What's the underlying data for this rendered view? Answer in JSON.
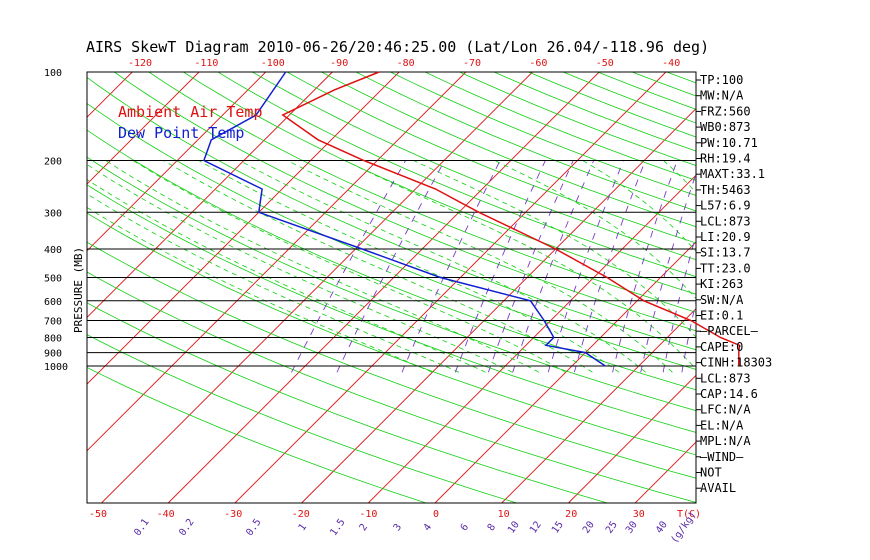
{
  "title": "AIRS SkewT Diagram 2010-06-26/20:46:25.00 (Lat/Lon 26.04/-118.96 deg)",
  "legend": {
    "ambient": "Ambient Air Temp",
    "dewpoint": "Dew Point Temp"
  },
  "colors": {
    "ambient": "#e01010",
    "dewpoint": "#1020d0",
    "isotherm": "#e01010",
    "dry_adiabat": "#10d010",
    "moist_adiabat": "#10d010",
    "mixing_ratio": "#7a3ac8",
    "frame": "#000000"
  },
  "side_panel": [
    "TP:100",
    "MW:N/A",
    "FRZ:560",
    "WB0:873",
    "PW:10.71",
    "RH:19.4",
    "MAXT:33.1",
    "TH:5463",
    "L57:6.9",
    "LCL:873",
    "LI:20.9",
    "SI:13.7",
    "TT:23.0",
    "KI:263",
    "SW:N/A",
    "EI:0.1",
    "—PARCEL—",
    "CAPE:0",
    "CINH:18303",
    "LCL:873",
    "CAP:14.6",
    "LFC:N/A",
    "EL:N/A",
    "MPL:N/A",
    "—WIND—",
    "NOT",
    "AVAIL"
  ],
  "top_ticks": [
    "-120",
    "-110",
    "-100",
    "-90",
    "-80",
    "-70",
    "-60",
    "-50",
    "-40"
  ],
  "bottom_ticks": [
    "-50",
    "-40",
    "-30",
    "-20",
    "-10",
    "0",
    "10",
    "20",
    "30",
    "T(C)"
  ],
  "mixing_ticks": [
    "0.1",
    "0.2",
    "0.5",
    "1",
    "1.5",
    "2",
    "3",
    "4",
    "6",
    "8",
    "10",
    "12",
    "15",
    "20",
    "25",
    "30",
    "40",
    "(g/kg)"
  ],
  "chart_data": {
    "type": "line",
    "title": "AIRS SkewT Diagram 2010-06-26/20:46:25.00 (Lat/Lon 26.04/-118.96 deg)",
    "ylabel": "PRESSURE (MB)",
    "xlabel": "T(C)",
    "y_scale": "log",
    "ylim": [
      1050,
      100
    ],
    "pressure_ticks": [
      100,
      200,
      300,
      400,
      500,
      600,
      700,
      800,
      900,
      1000
    ],
    "series": [
      {
        "name": "Ambient Air Temp",
        "points": [
          {
            "p": 100,
            "t": -73
          },
          {
            "p": 115,
            "t": -77
          },
          {
            "p": 140,
            "t": -81
          },
          {
            "p": 170,
            "t": -72
          },
          {
            "p": 200,
            "t": -62
          },
          {
            "p": 250,
            "t": -47
          },
          {
            "p": 300,
            "t": -37
          },
          {
            "p": 400,
            "t": -20
          },
          {
            "p": 500,
            "t": -8
          },
          {
            "p": 600,
            "t": 1
          },
          {
            "p": 700,
            "t": 11
          },
          {
            "p": 800,
            "t": 18
          },
          {
            "p": 850,
            "t": 22
          },
          {
            "p": 900,
            "t": 23
          },
          {
            "p": 1000,
            "t": 25
          }
        ]
      },
      {
        "name": "Dew Point Temp",
        "points": [
          {
            "p": 100,
            "t": -87
          },
          {
            "p": 140,
            "t": -85
          },
          {
            "p": 170,
            "t": -88
          },
          {
            "p": 200,
            "t": -86
          },
          {
            "p": 250,
            "t": -73
          },
          {
            "p": 300,
            "t": -70
          },
          {
            "p": 400,
            "t": -49
          },
          {
            "p": 500,
            "t": -33
          },
          {
            "p": 600,
            "t": -16
          },
          {
            "p": 700,
            "t": -11
          },
          {
            "p": 800,
            "t": -7
          },
          {
            "p": 850,
            "t": -7
          },
          {
            "p": 900,
            "t": 0
          },
          {
            "p": 1000,
            "t": 5
          }
        ]
      }
    ]
  }
}
